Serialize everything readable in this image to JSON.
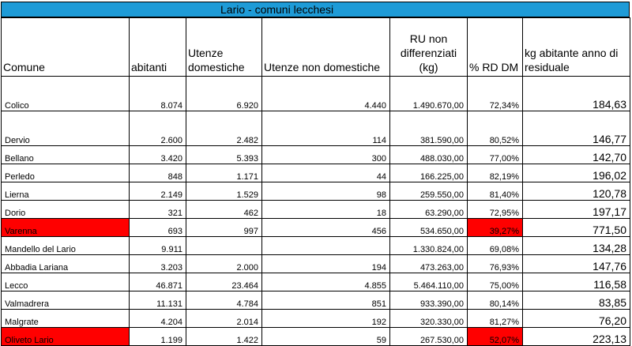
{
  "title": "Lario - comuni lecchesi",
  "headers": {
    "comune": "Comune",
    "abitanti": "abitanti",
    "utenze_domestiche": "Utenze domestiche",
    "utenze_non_domestiche": "Utenze non domestiche",
    "ru": "RU non differenziati (kg)",
    "rd": "% RD DM",
    "kg": "kg abitante anno di residuale"
  },
  "highlight_color": "#ff0000",
  "header_bar_color": "#1e9bd7",
  "rows": [
    {
      "comune": "Colico",
      "abitanti": "8.074",
      "ud": "6.920",
      "und": "4.440",
      "ru": "1.490.670,00",
      "rd": "72,34%",
      "kg": "184,63",
      "highlight": false,
      "tall": true
    },
    {
      "comune": "Dervio",
      "abitanti": "2.600",
      "ud": "2.482",
      "und": "114",
      "ru": "381.590,00",
      "rd": "80,52%",
      "kg": "146,77",
      "highlight": false,
      "tall": true
    },
    {
      "comune": "Bellano",
      "abitanti": "3.420",
      "ud": "5.393",
      "und": "300",
      "ru": "488.030,00",
      "rd": "77,00%",
      "kg": "142,70",
      "highlight": false,
      "tall": false
    },
    {
      "comune": "Perledo",
      "abitanti": "848",
      "ud": "1.171",
      "und": "44",
      "ru": "166.225,00",
      "rd": "82,19%",
      "kg": "196,02",
      "highlight": false,
      "tall": false
    },
    {
      "comune": "Lierna",
      "abitanti": "2.149",
      "ud": "1.529",
      "und": "98",
      "ru": "259.550,00",
      "rd": "81,40%",
      "kg": "120,78",
      "highlight": false,
      "tall": false
    },
    {
      "comune": "Dorio",
      "abitanti": "321",
      "ud": "462",
      "und": "18",
      "ru": "63.290,00",
      "rd": "72,95%",
      "kg": "197,17",
      "highlight": false,
      "tall": false
    },
    {
      "comune": "Varenna",
      "abitanti": "693",
      "ud": "997",
      "und": "456",
      "ru": "534.650,00",
      "rd": "39,27%",
      "kg": "771,50",
      "highlight": true,
      "tall": false
    },
    {
      "comune": "Mandello del Lario",
      "abitanti": "9.911",
      "ud": "",
      "und": "",
      "ru": "1.330.824,00",
      "rd": "69,08%",
      "kg": "134,28",
      "highlight": false,
      "tall": false
    },
    {
      "comune": "Abbadia Lariana",
      "abitanti": "3.203",
      "ud": "2.000",
      "und": "194",
      "ru": "473.263,00",
      "rd": "76,93%",
      "kg": "147,76",
      "highlight": false,
      "tall": false
    },
    {
      "comune": "Lecco",
      "abitanti": "46.871",
      "ud": "23.464",
      "und": "4.855",
      "ru": "5.464.110,00",
      "rd": "75,00%",
      "kg": "116,58",
      "highlight": false,
      "tall": false
    },
    {
      "comune": "Valmadrera",
      "abitanti": "11.131",
      "ud": "4.784",
      "und": "851",
      "ru": "933.390,00",
      "rd": "80,14%",
      "kg": "83,85",
      "highlight": false,
      "tall": false
    },
    {
      "comune": "Malgrate",
      "abitanti": "4.204",
      "ud": "2.014",
      "und": "192",
      "ru": "320.330,00",
      "rd": "81,27%",
      "kg": "76,20",
      "highlight": false,
      "tall": false
    },
    {
      "comune": "Oliveto Lario",
      "abitanti": "1.199",
      "ud": "1.422",
      "und": "59",
      "ru": "267.530,00",
      "rd": "52,07%",
      "kg": "223,13",
      "highlight": true,
      "tall": false
    }
  ]
}
